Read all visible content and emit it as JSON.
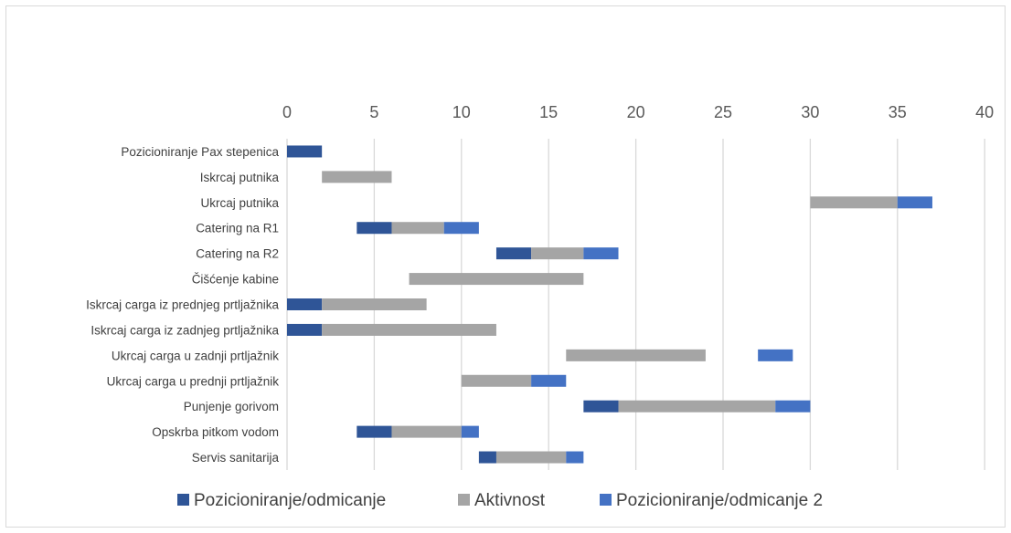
{
  "chart_data": {
    "type": "bar",
    "orientation": "horizontal-stacked",
    "categories": [
      "Pozicioniranje Pax stepenica",
      "Iskrcaj putnika",
      "Ukrcaj putnika",
      "Catering na R1",
      "Catering na R2",
      "Čišćenje kabine",
      "Iskrcaj carga iz prednjeg prtljažnika",
      "Iskrcaj carga iz zadnjeg prtljažnika",
      "Ukrcaj carga u zadnji prtljažnik",
      "Ukrcaj carga u prednji prtljažnik",
      "Punjenje gorivom",
      "Opskrba pitkom vodom",
      "Servis sanitarija"
    ],
    "start_offsets": [
      0,
      2,
      30,
      4,
      12,
      7,
      0,
      0,
      16,
      10,
      17,
      4,
      11
    ],
    "series": [
      {
        "name": "Pozicioniranje/odmicanje",
        "color": "#2f5597",
        "values": [
          2,
          0,
          0,
          2,
          2,
          0,
          2,
          2,
          0,
          0,
          2,
          2,
          1
        ]
      },
      {
        "name": "Aktivnost",
        "color": "#a5a5a5",
        "values": [
          0,
          4,
          5,
          3,
          3,
          10,
          6,
          10,
          8,
          4,
          9,
          4,
          4
        ]
      },
      {
        "name": "Pozicioniranje/odmicanje 2",
        "color": "#4472c4",
        "values": [
          0,
          0,
          2,
          2,
          2,
          0,
          0,
          0,
          2,
          2,
          2,
          1,
          1
        ]
      }
    ],
    "gaps_before_series_3": [
      0,
      0,
      0,
      0,
      0,
      0,
      0,
      0,
      3,
      0,
      0,
      0,
      0
    ],
    "x_ticks": [
      "0",
      "5",
      "10",
      "15",
      "20",
      "25",
      "30",
      "35",
      "40"
    ],
    "xlim": [
      0,
      40
    ],
    "grid": "vertical",
    "axis_position": "top",
    "legend_position": "bottom",
    "title": "",
    "xlabel": "",
    "ylabel": ""
  }
}
